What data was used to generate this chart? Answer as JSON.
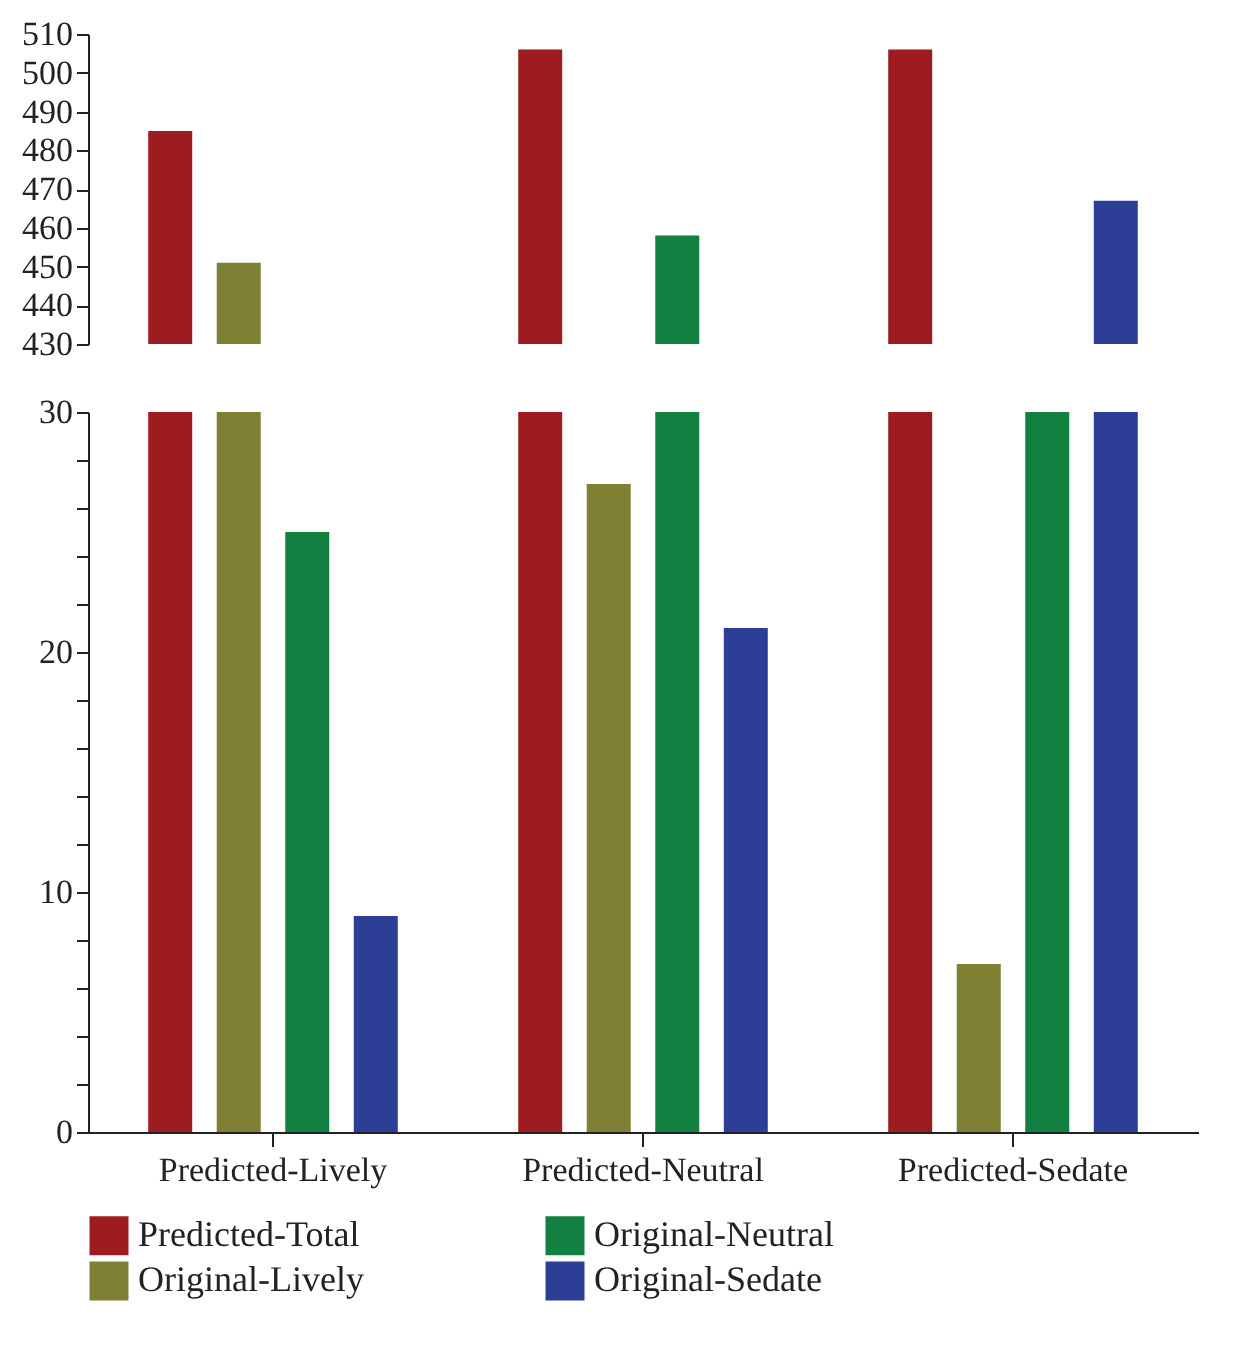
{
  "chart_data": [
    {
      "type": "bar",
      "categories": [
        null,
        null,
        null
      ],
      "ylim": [
        430,
        510
      ],
      "yticks": [
        430,
        440,
        450,
        460,
        470,
        480,
        490,
        500,
        510
      ],
      "tick_labels": "y",
      "series": [
        {
          "color": "#9e1b20",
          "values": [
            485,
            506,
            506
          ]
        },
        {
          "color": "#7e8033",
          "values": [
            451,
            null,
            null
          ]
        },
        {
          "color": "#118040",
          "values": [
            null,
            458,
            null
          ]
        },
        {
          "color": "#2c3e96",
          "values": [
            null,
            null,
            467
          ]
        }
      ]
    },
    {
      "type": "bar",
      "categories": [
        "Predicted-Lively",
        "Predicted-Neutral",
        "Predicted-Sedate"
      ],
      "ylim": [
        0,
        30
      ],
      "yticks": [
        0,
        {
          "value": 2,
          "label": null
        },
        {
          "value": 4,
          "label": null
        },
        {
          "value": 6,
          "label": null
        },
        {
          "value": 8,
          "label": null
        },
        10,
        {
          "value": 12,
          "label": null
        },
        {
          "value": 14,
          "label": null
        },
        {
          "value": 16,
          "label": null
        },
        {
          "value": 18,
          "label": null
        },
        20,
        {
          "value": 22,
          "label": null
        },
        {
          "value": 24,
          "label": null
        },
        {
          "value": 26,
          "label": null
        },
        {
          "value": 28,
          "label": null
        },
        30
      ],
      "legend": "bottom",
      "series": [
        {
          "name": "Predicted-Total",
          "color": "#9e1b20",
          "values": [
            30,
            30,
            30
          ]
        },
        {
          "name": "Original-Lively",
          "color": "#7e8033",
          "values": [
            30,
            27,
            7
          ]
        },
        {
          "name": "Original-Neutral",
          "color": "#118040",
          "values": [
            25,
            30,
            30
          ]
        },
        {
          "name": "Original-Sedate",
          "color": "#2c3e96",
          "values": [
            9,
            21,
            30
          ]
        }
      ]
    }
  ]
}
